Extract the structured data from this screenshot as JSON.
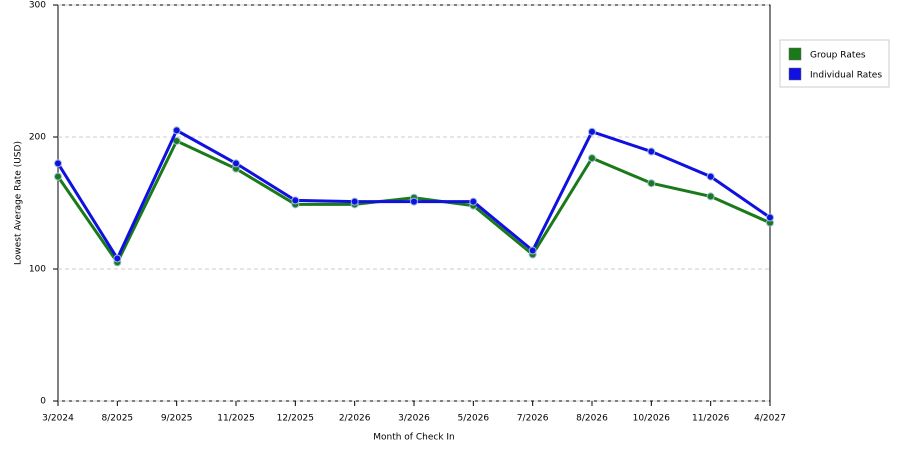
{
  "chart_data": {
    "type": "line",
    "x_label": "Month of Check In",
    "y_label": "Lowest Average Rate (USD)",
    "categories": [
      "3/2024",
      "8/2025",
      "9/2025",
      "11/2025",
      "12/2025",
      "2/2026",
      "3/2026",
      "5/2026",
      "7/2026",
      "8/2026",
      "10/2026",
      "11/2026",
      "4/2027"
    ],
    "series": [
      {
        "name": "Group Rates",
        "color": "#1a7a1a",
        "values": [
          170,
          105,
          197,
          176,
          149,
          149,
          154,
          148,
          111,
          184,
          165,
          155,
          135
        ]
      },
      {
        "name": "Individual Rates",
        "color": "#1010e0",
        "values": [
          180,
          108,
          205,
          180,
          152,
          151,
          151,
          151,
          114,
          204,
          189,
          170,
          139
        ]
      }
    ],
    "ylim": [
      0,
      300
    ],
    "yticks": [
      0,
      100,
      200,
      300
    ],
    "grid": true,
    "legend": "right"
  }
}
